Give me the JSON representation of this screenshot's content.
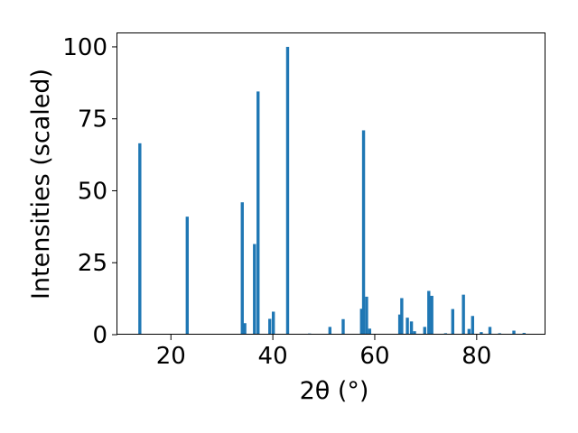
{
  "chart_data": {
    "type": "bar",
    "xlabel": "2θ (°)",
    "ylabel": "Intensities (scaled)",
    "xlim": [
      9.5,
      93.5
    ],
    "ylim": [
      0,
      105
    ],
    "x_ticks": [
      20,
      40,
      60,
      80
    ],
    "y_ticks": [
      0,
      25,
      50,
      75,
      100
    ],
    "grid": false,
    "bar_width": 0.6,
    "bar_color": "#1f77b4",
    "points": [
      {
        "x": 13.9,
        "y": 66.5
      },
      {
        "x": 23.2,
        "y": 41.0
      },
      {
        "x": 34.0,
        "y": 46.0
      },
      {
        "x": 34.5,
        "y": 4.0
      },
      {
        "x": 36.4,
        "y": 31.5
      },
      {
        "x": 37.1,
        "y": 84.5
      },
      {
        "x": 39.4,
        "y": 5.5
      },
      {
        "x": 40.1,
        "y": 8.0
      },
      {
        "x": 42.9,
        "y": 100.0
      },
      {
        "x": 47.2,
        "y": 0.4
      },
      {
        "x": 51.2,
        "y": 2.7
      },
      {
        "x": 53.8,
        "y": 5.4
      },
      {
        "x": 57.4,
        "y": 9.0
      },
      {
        "x": 57.8,
        "y": 71.0
      },
      {
        "x": 58.4,
        "y": 13.2
      },
      {
        "x": 59.0,
        "y": 2.1
      },
      {
        "x": 64.9,
        "y": 7.0
      },
      {
        "x": 65.3,
        "y": 12.7
      },
      {
        "x": 66.4,
        "y": 5.9
      },
      {
        "x": 67.2,
        "y": 4.6
      },
      {
        "x": 67.8,
        "y": 1.2
      },
      {
        "x": 69.8,
        "y": 2.7
      },
      {
        "x": 70.6,
        "y": 15.2
      },
      {
        "x": 71.2,
        "y": 13.5
      },
      {
        "x": 73.9,
        "y": 0.5
      },
      {
        "x": 75.3,
        "y": 8.9
      },
      {
        "x": 77.4,
        "y": 13.9
      },
      {
        "x": 78.5,
        "y": 2.0
      },
      {
        "x": 79.2,
        "y": 6.5
      },
      {
        "x": 80.9,
        "y": 0.9
      },
      {
        "x": 82.6,
        "y": 2.7
      },
      {
        "x": 84.5,
        "y": 0.5
      },
      {
        "x": 87.3,
        "y": 1.4
      },
      {
        "x": 89.3,
        "y": 0.6
      }
    ]
  }
}
